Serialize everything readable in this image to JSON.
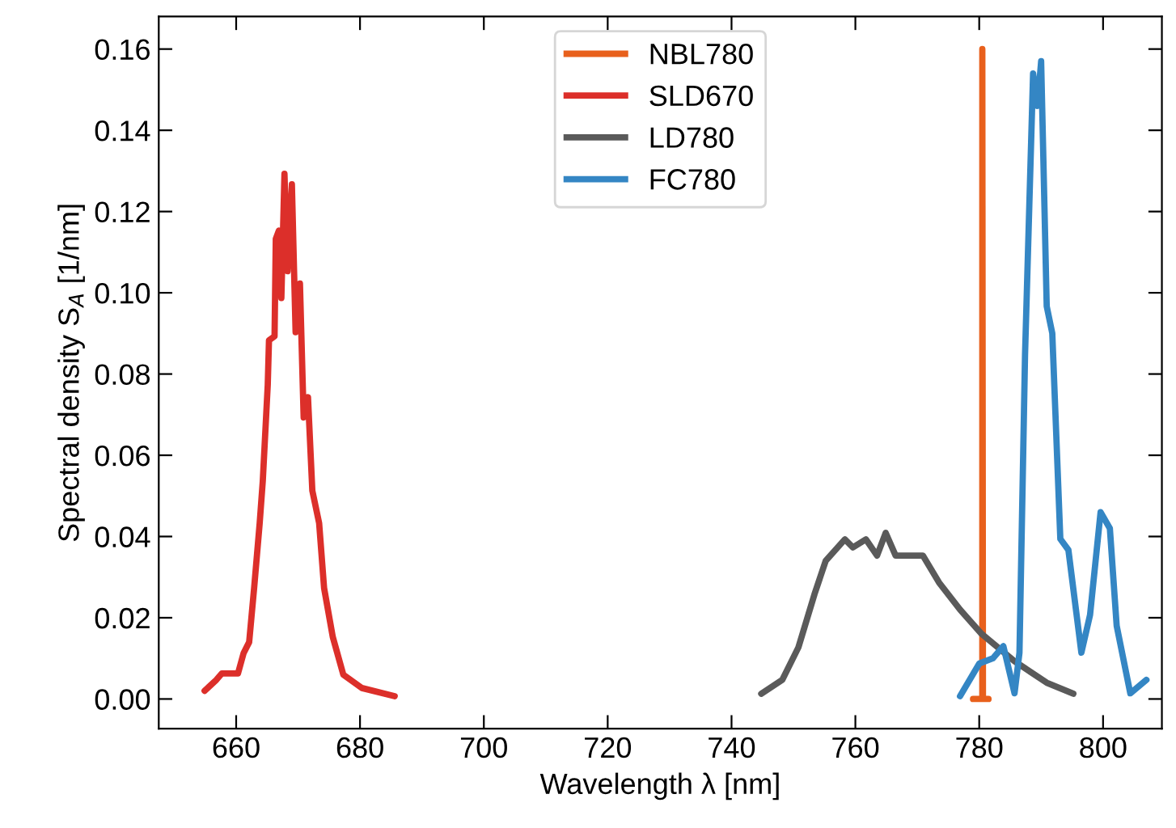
{
  "chart_data": {
    "type": "line",
    "xlabel": "Wavelength λ [nm]",
    "ylabel": "Spectral density S$_{A}$ [1/nm]",
    "xlim": [
      647.5,
      809.5
    ],
    "ylim": [
      -0.0073,
      0.168
    ],
    "xticks": [
      660,
      680,
      700,
      720,
      740,
      760,
      780,
      800
    ],
    "yticks": [
      {
        "value": 0,
        "label": "0.00"
      },
      {
        "value": 0.02,
        "label": "0.02"
      },
      {
        "value": 0.04,
        "label": "0.04"
      },
      {
        "value": 0.06,
        "label": "0.06"
      },
      {
        "value": 0.08,
        "label": "0.08"
      },
      {
        "value": 0.1,
        "label": "0.10"
      },
      {
        "value": 0.12,
        "label": "0.12"
      },
      {
        "value": 0.14,
        "label": "0.14"
      },
      {
        "value": 0.16,
        "label": "0.16"
      }
    ],
    "grid": false,
    "legend": "top center",
    "marker": "none",
    "line_style": "solid",
    "series": [
      {
        "name": "NBL780",
        "color": "#e8601c",
        "x": [
          779.0,
          780.5,
          780.5,
          780.6,
          781.5
        ],
        "values": [
          0,
          0,
          0.16,
          0,
          0
        ]
      },
      {
        "name": "SLD670",
        "color": "#dc2f2a",
        "x": [
          654.9,
          656.8,
          657.7,
          660.3,
          661.2,
          662.1,
          662.9,
          663.8,
          664.3,
          665.1,
          665.3,
          666.2,
          666.4,
          666.9,
          667.3,
          667.8,
          668.3,
          669.0,
          669.6,
          670.3,
          670.9,
          671.6,
          672.3,
          673.4,
          674.2,
          675.6,
          677.3,
          680.3,
          685.6
        ],
        "values": [
          0.002,
          0.0047,
          0.0063,
          0.0063,
          0.0113,
          0.014,
          0.0273,
          0.0433,
          0.0537,
          0.0773,
          0.0883,
          0.0893,
          0.1133,
          0.1153,
          0.0987,
          0.1293,
          0.1053,
          0.1267,
          0.0903,
          0.1023,
          0.0693,
          0.0743,
          0.0513,
          0.0433,
          0.0273,
          0.0153,
          0.006,
          0.0027,
          0.0007
        ]
      },
      {
        "name": "LD780",
        "color": "#5a5a5a",
        "x": [
          744.8,
          748.2,
          750.8,
          753.4,
          755.2,
          758.3,
          759.6,
          761.7,
          763.5,
          764.9,
          766.5,
          770.9,
          773.5,
          776.9,
          780.4,
          785.7,
          790.9,
          795.2
        ],
        "values": [
          0.0013,
          0.0047,
          0.0127,
          0.0258,
          0.034,
          0.0393,
          0.0373,
          0.0393,
          0.0353,
          0.0409,
          0.0353,
          0.0353,
          0.0287,
          0.022,
          0.016,
          0.0093,
          0.004,
          0.0013
        ]
      },
      {
        "name": "FC780",
        "color": "#3486c4",
        "x": [
          776.9,
          780.0,
          782.2,
          783.9,
          785.7,
          786.5,
          787.4,
          788.7,
          789.4,
          790.0,
          790.9,
          791.8,
          793.1,
          794.4,
          796.5,
          797.9,
          799.6,
          801.1,
          802.2,
          804.4,
          807.0
        ],
        "values": [
          0.0007,
          0.0087,
          0.01,
          0.013,
          0.0014,
          0.0114,
          0.0847,
          0.154,
          0.146,
          0.157,
          0.0967,
          0.09,
          0.0394,
          0.0367,
          0.0114,
          0.0207,
          0.046,
          0.042,
          0.018,
          0.0014,
          0.0047
        ]
      }
    ]
  }
}
